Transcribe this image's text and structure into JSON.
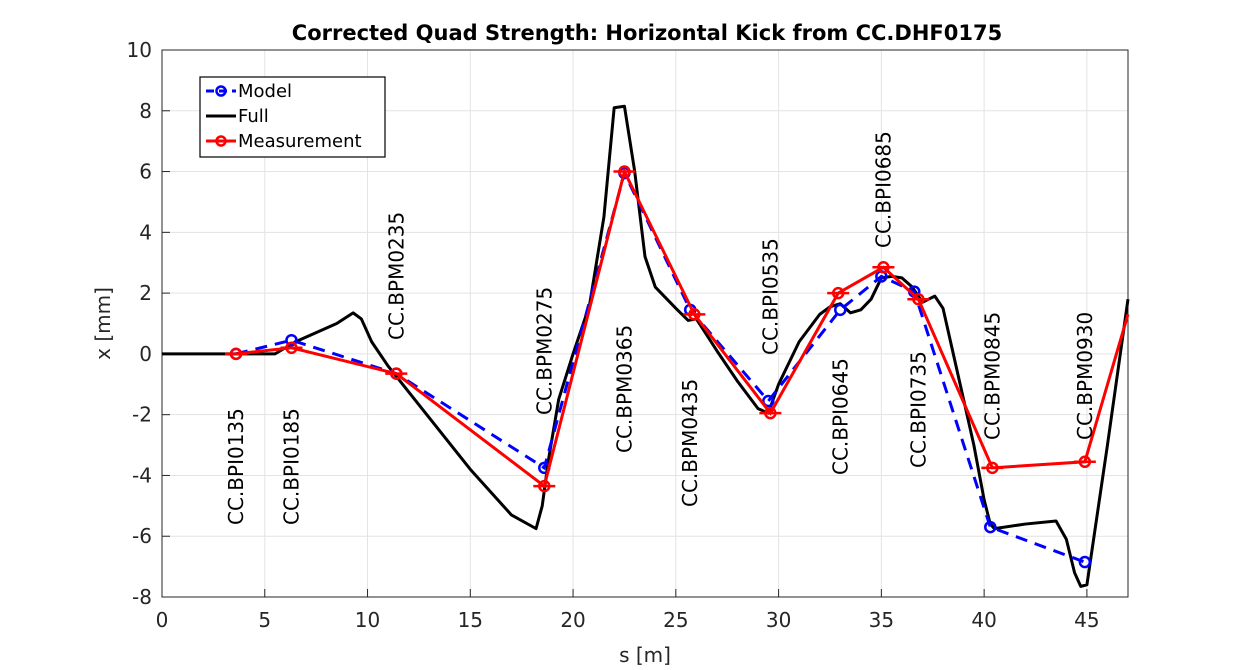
{
  "chart_data": {
    "type": "line",
    "title": "Corrected Quad Strength: Horizontal Kick from CC.DHF0175",
    "xlabel": "s [m]",
    "ylabel": "x [mm]",
    "xlim": [
      0,
      47
    ],
    "ylim": [
      -8,
      10
    ],
    "xticks": [
      0,
      5,
      10,
      15,
      20,
      25,
      30,
      35,
      40,
      45
    ],
    "yticks": [
      -8,
      -6,
      -4,
      -2,
      0,
      2,
      4,
      6,
      8,
      10
    ],
    "grid": true,
    "legend_position": "top-left",
    "legend": [
      "Model",
      "Full",
      "Measurement"
    ],
    "series": [
      {
        "name": "Model",
        "color": "#0000ff",
        "style": "dashed-circle-markers",
        "x": [
          3.6,
          6.3,
          11.4,
          18.6,
          22.5,
          25.7,
          29.5,
          33.0,
          35.0,
          36.6,
          40.3,
          44.9
        ],
        "y": [
          0.0,
          0.45,
          -0.65,
          -3.75,
          5.95,
          1.45,
          -1.55,
          1.45,
          2.55,
          2.05,
          -5.7,
          -6.85
        ]
      },
      {
        "name": "Full",
        "color": "#000000",
        "style": "solid",
        "x": [
          0,
          5.5,
          6.5,
          8.5,
          9.3,
          9.7,
          10.2,
          11.0,
          13.0,
          15.0,
          17.0,
          18.2,
          18.5,
          18.8,
          19.3,
          20.0,
          20.8,
          21.5,
          22.0,
          22.5,
          23.0,
          23.5,
          24.0,
          25.0,
          25.6,
          26.0,
          27.0,
          28.0,
          29.0,
          29.5,
          30.0,
          31.0,
          32.0,
          32.5,
          33.0,
          33.5,
          34.0,
          34.5,
          35.0,
          35.5,
          36.0,
          36.5,
          37.0,
          37.3,
          37.6,
          38.0,
          38.5,
          39.0,
          39.5,
          40.0,
          40.3,
          40.5,
          42.0,
          43.5,
          44.0,
          44.4,
          44.7,
          45.0,
          46.0,
          47.0
        ],
        "y": [
          0,
          0,
          0.4,
          1.0,
          1.35,
          1.15,
          0.4,
          -0.4,
          -2.1,
          -3.8,
          -5.3,
          -5.75,
          -5.0,
          -3.5,
          -1.5,
          0.0,
          1.6,
          4.5,
          8.1,
          8.15,
          6.0,
          3.2,
          2.2,
          1.5,
          1.1,
          1.15,
          0.1,
          -0.9,
          -1.8,
          -1.95,
          -1.0,
          0.4,
          1.3,
          1.55,
          1.65,
          1.35,
          1.45,
          1.8,
          2.5,
          2.55,
          2.5,
          2.2,
          1.7,
          1.8,
          1.9,
          1.5,
          0.0,
          -1.5,
          -3.0,
          -4.8,
          -5.6,
          -5.75,
          -5.6,
          -5.5,
          -6.1,
          -7.2,
          -7.65,
          -7.6,
          -3.0,
          1.8
        ]
      },
      {
        "name": "Measurement",
        "color": "#ff0000",
        "style": "solid-circle-markers-errorbars",
        "x": [
          3.6,
          6.3,
          11.4,
          18.6,
          22.5,
          25.9,
          29.6,
          32.9,
          35.1,
          36.8,
          40.4,
          44.9,
          47.0
        ],
        "y": [
          0.0,
          0.2,
          -0.65,
          -4.35,
          6.0,
          1.3,
          -1.95,
          2.0,
          2.85,
          1.8,
          -3.75,
          -3.55,
          1.3
        ]
      }
    ],
    "bpm_labels": [
      {
        "text": "CC.BPI0135",
        "s": 3.6,
        "side": "below"
      },
      {
        "text": "CC.BPI0185",
        "s": 6.3,
        "side": "below"
      },
      {
        "text": "CC.BPM0235",
        "s": 11.4,
        "side": "above"
      },
      {
        "text": "CC.BPM0275",
        "s": 18.6,
        "side": "above"
      },
      {
        "text": "CC.BPM0365",
        "s": 22.5,
        "side": "below"
      },
      {
        "text": "CC.BPM0435",
        "s": 25.7,
        "side": "below"
      },
      {
        "text": "CC.BPI0535",
        "s": 29.6,
        "side": "above"
      },
      {
        "text": "CC.BPI0645",
        "s": 33.0,
        "side": "below"
      },
      {
        "text": "CC.BPI0685",
        "s": 35.1,
        "side": "above"
      },
      {
        "text": "CC.BPI0735",
        "s": 36.8,
        "side": "below"
      },
      {
        "text": "CC.BPM0845",
        "s": 40.4,
        "side": "above"
      },
      {
        "text": "CC.BPM0930",
        "s": 44.9,
        "side": "above"
      }
    ]
  }
}
